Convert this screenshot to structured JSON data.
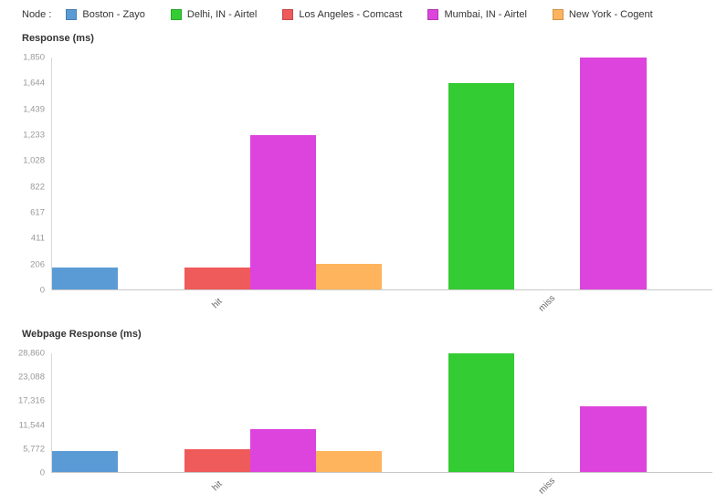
{
  "legend": {
    "label": "Node :",
    "items": [
      {
        "label": "Boston - Zayo",
        "color": "#5b9bd5"
      },
      {
        "label": "Delhi, IN - Airtel",
        "color": "#33cc33"
      },
      {
        "label": "Los Angeles - Comcast",
        "color": "#ef5a5a"
      },
      {
        "label": "Mumbai, IN - Airtel",
        "color": "#dd44dd"
      },
      {
        "label": "New York - Cogent",
        "color": "#fdb45c"
      }
    ]
  },
  "chart_data": [
    {
      "type": "bar",
      "title": "Response (ms)",
      "categories": [
        "hit",
        "miss"
      ],
      "series": [
        {
          "name": "Boston - Zayo",
          "color": "#5b9bd5",
          "values": [
            175,
            null
          ]
        },
        {
          "name": "Delhi, IN - Airtel",
          "color": "#33cc33",
          "values": [
            null,
            1644
          ]
        },
        {
          "name": "Los Angeles - Comcast",
          "color": "#ef5a5a",
          "values": [
            175,
            null
          ]
        },
        {
          "name": "Mumbai, IN - Airtel",
          "color": "#dd44dd",
          "values": [
            1233,
            1850
          ]
        },
        {
          "name": "New York - Cogent",
          "color": "#fdb45c",
          "values": [
            206,
            null
          ]
        }
      ],
      "ylim": [
        0,
        1850
      ],
      "yticks": [
        "0",
        "206",
        "411",
        "617",
        "822",
        "1,028",
        "1,233",
        "1,439",
        "1,644",
        "1,850"
      ],
      "grid": false,
      "legend_position": "top"
    },
    {
      "type": "bar",
      "title": "Webpage Response (ms)",
      "categories": [
        "hit",
        "miss"
      ],
      "series": [
        {
          "name": "Boston - Zayo",
          "color": "#5b9bd5",
          "values": [
            5100,
            null
          ]
        },
        {
          "name": "Delhi, IN - Airtel",
          "color": "#33cc33",
          "values": [
            null,
            28860
          ]
        },
        {
          "name": "Los Angeles - Comcast",
          "color": "#ef5a5a",
          "values": [
            5500,
            null
          ]
        },
        {
          "name": "Mumbai, IN - Airtel",
          "color": "#dd44dd",
          "values": [
            10500,
            15900
          ]
        },
        {
          "name": "New York - Cogent",
          "color": "#fdb45c",
          "values": [
            5100,
            null
          ]
        }
      ],
      "ylim": [
        0,
        28860
      ],
      "yticks": [
        "0",
        "5,772",
        "11,544",
        "17,316",
        "23,088",
        "28,860"
      ],
      "grid": false,
      "legend_position": "top"
    }
  ]
}
